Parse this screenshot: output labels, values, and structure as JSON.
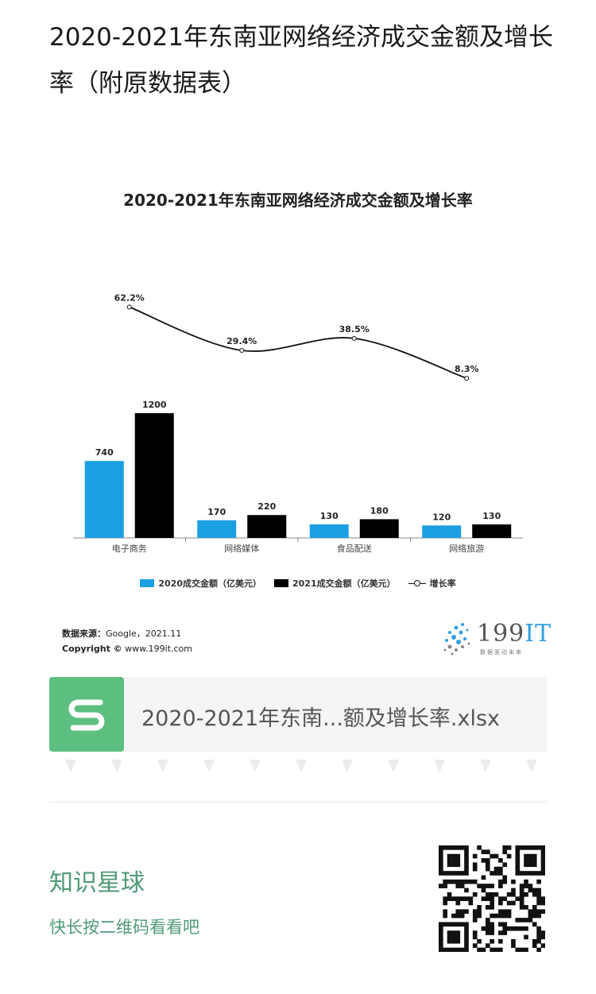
{
  "article": {
    "title": "2020-2021年东南亚网络经济成交金额及增长率（附原数据表）"
  },
  "chart_data": {
    "type": "bar",
    "title": "2020-2021年东南亚网络经济成交金额及增长率",
    "categories": [
      "电子商务",
      "网络媒体",
      "食品配送",
      "网络旅游"
    ],
    "series": [
      {
        "name": "2020成交金额（亿美元）",
        "values": [
          740,
          170,
          130,
          120
        ],
        "color": "#1b9fe3"
      },
      {
        "name": "2021成交金额（亿美元）",
        "values": [
          1200,
          220,
          180,
          130
        ],
        "color": "#000000"
      }
    ],
    "line": {
      "name": "增长率",
      "values": [
        62.2,
        29.4,
        38.5,
        8.3
      ],
      "labels": [
        "62.2%",
        "29.4%",
        "38.5%",
        "8.3%"
      ]
    },
    "legend_position": "bottom",
    "grid": false
  },
  "source": {
    "label": "数据来源：",
    "text": "Google，2021.11",
    "copyright_label": "Copyright ©",
    "copyright_text": "www.199it.com"
  },
  "brand": {
    "logo_text": "199",
    "logo_it": "IT",
    "tagline": "数据驱动未来"
  },
  "attachment": {
    "file_name": "2020-2021年东南...额及增长率.xlsx",
    "accent": "#5cbf80"
  },
  "footer": {
    "title": "知识星球",
    "subtitle": "快长按二维码看看吧",
    "accent": "#4f9a76"
  }
}
